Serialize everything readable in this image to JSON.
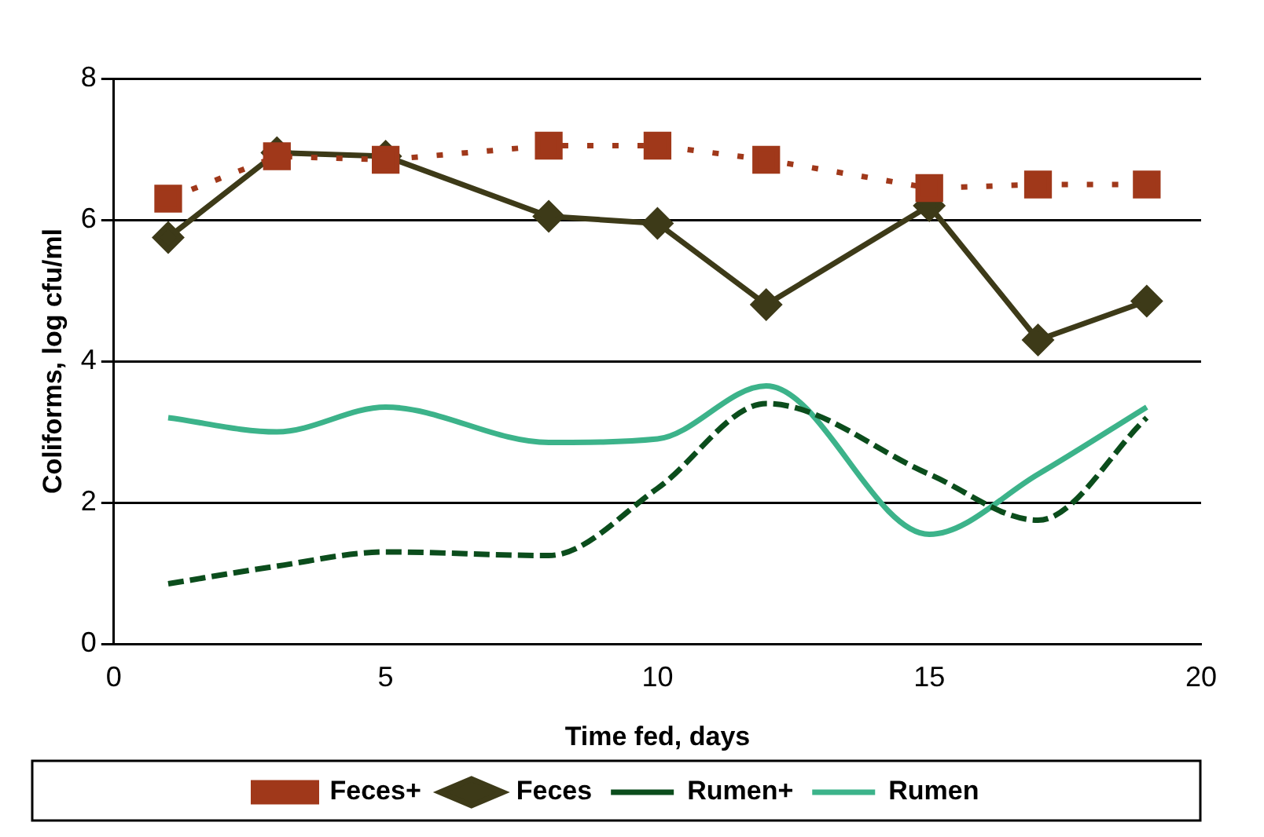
{
  "chart_data": {
    "type": "line",
    "xlabel": "Time fed, days",
    "ylabel": "Coliforms, log cfu/ml",
    "x": [
      1,
      3,
      5,
      8,
      10,
      12,
      15,
      17,
      19
    ],
    "xlim": [
      0,
      20
    ],
    "xticks": [
      0,
      5,
      10,
      15,
      20
    ],
    "ylim": [
      0,
      8
    ],
    "yticks": [
      0,
      2,
      4,
      6,
      8
    ],
    "grid": "y",
    "legend": "bottom",
    "series": [
      {
        "name": "Rumen",
        "color": "#3cb38a",
        "values": [
          3.2,
          3.0,
          3.35,
          2.85,
          2.9,
          3.65,
          1.55,
          2.4,
          3.35
        ],
        "marker": "none",
        "line_style": "solid"
      },
      {
        "name": "Rumen+",
        "color": "#0b4d1c",
        "values": [
          0.85,
          1.1,
          1.3,
          1.25,
          2.2,
          3.4,
          2.4,
          1.75,
          3.2
        ],
        "marker": "none",
        "line_style": "dashed"
      },
      {
        "name": "Feces",
        "color": "#3d3a18",
        "values": [
          5.75,
          6.95,
          6.9,
          6.05,
          5.95,
          4.8,
          6.2,
          4.3,
          4.85
        ],
        "marker": "diamond",
        "line_style": "solid"
      },
      {
        "name": "Feces+",
        "color": "#a0381a",
        "values": [
          6.3,
          6.9,
          6.85,
          7.05,
          7.05,
          6.85,
          6.45,
          6.5,
          6.5
        ],
        "marker": "square",
        "line_style": "dotted"
      }
    ]
  }
}
